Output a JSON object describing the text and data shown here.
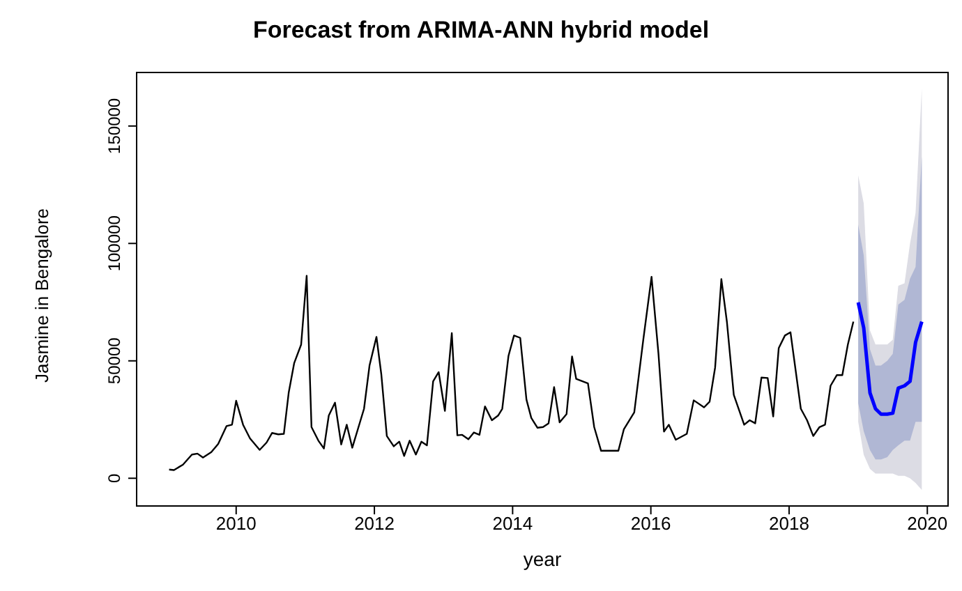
{
  "chart_data": {
    "type": "line",
    "title": "Forecast from ARIMA-ANN hybrid model",
    "xlabel": "year",
    "ylabel": "Jasmine in Bengalore",
    "xlim": [
      2008.56,
      2020.3
    ],
    "xticks": [
      2010,
      2012,
      2014,
      2016,
      2018,
      2020
    ],
    "ylim": [
      -11800,
      172800
    ],
    "yticks": [
      0,
      50000,
      100000,
      150000
    ],
    "marker": "none",
    "line_style": "solid",
    "series": [
      {
        "color": "#dcdce4",
        "x": [
          2019.0,
          2019.08,
          2019.17,
          2019.25,
          2019.33,
          2019.42,
          2019.5,
          2019.58,
          2019.67,
          2019.75,
          2019.83,
          2019.92
        ],
        "values": [
          null,
          null,
          null,
          null,
          null,
          null,
          null,
          null,
          null,
          null,
          null,
          null
        ],
        "lower": [
          24000,
          10000,
          4000,
          2000,
          2000,
          2000,
          2000,
          1000,
          1000,
          0,
          -2000,
          -5000
        ],
        "upper": [
          129000,
          117000,
          63000,
          57000,
          57000,
          57000,
          59000,
          82000,
          83000,
          100000,
          113000,
          166000
        ]
      },
      {
        "color": "#b0b7d4",
        "x": [
          2019.0,
          2019.08,
          2019.17,
          2019.25,
          2019.33,
          2019.42,
          2019.5,
          2019.58,
          2019.67,
          2019.75,
          2019.83,
          2019.92
        ],
        "values": [
          null,
          null,
          null,
          null,
          null,
          null,
          null,
          null,
          null,
          null,
          null,
          null
        ],
        "lower": [
          32000,
          20000,
          12000,
          8000,
          8000,
          9000,
          12000,
          14000,
          16000,
          16000,
          24000,
          24000
        ],
        "upper": [
          108000,
          95000,
          55000,
          48000,
          48000,
          50000,
          53000,
          74000,
          76000,
          85000,
          90000,
          137000
        ]
      },
      {
        "color": "#0000ff",
        "x": [
          2019.0,
          2019.08,
          2019.17,
          2019.25,
          2019.33,
          2019.42,
          2019.5,
          2019.58,
          2019.67,
          2019.75,
          2019.83,
          2019.92
        ],
        "values": [
          74900,
          64000,
          36400,
          29600,
          27300,
          27300,
          27700,
          38400,
          39400,
          41300,
          57900,
          66700
        ]
      },
      {
        "color": "#000000",
        "x": [
          2009.03,
          2009.1,
          2009.23,
          2009.36,
          2009.44,
          2009.52,
          2009.64,
          2009.74,
          2009.86,
          2009.94,
          2010.0,
          2010.1,
          2010.2,
          2010.34,
          2010.44,
          2010.52,
          2010.61,
          2010.69,
          2010.76,
          2010.84,
          2010.94,
          2011.02,
          2011.09,
          2011.19,
          2011.27,
          2011.34,
          2011.43,
          2011.52,
          2011.6,
          2011.68,
          2011.85,
          2011.93,
          2012.03,
          2012.1,
          2012.18,
          2012.28,
          2012.36,
          2012.43,
          2012.51,
          2012.6,
          2012.68,
          2012.76,
          2012.85,
          2012.93,
          2013.02,
          2013.12,
          2013.2,
          2013.27,
          2013.36,
          2013.44,
          2013.52,
          2013.6,
          2013.7,
          2013.79,
          2013.85,
          2013.94,
          2014.02,
          2014.11,
          2014.2,
          2014.27,
          2014.36,
          2014.44,
          2014.52,
          2014.6,
          2014.68,
          2014.78,
          2014.86,
          2014.92,
          2015.09,
          2015.18,
          2015.28,
          2015.53,
          2015.61,
          2015.76,
          2015.89,
          2016.01,
          2016.11,
          2016.19,
          2016.26,
          2016.36,
          2016.52,
          2016.62,
          2016.77,
          2016.85,
          2016.93,
          2017.02,
          2017.1,
          2017.2,
          2017.35,
          2017.43,
          2017.51,
          2017.6,
          2017.69,
          2017.77,
          2017.85,
          2017.94,
          2018.02,
          2018.17,
          2018.26,
          2018.35,
          2018.44,
          2018.52,
          2018.6,
          2018.69,
          2018.77,
          2018.85,
          2018.93
        ],
        "values": [
          3700,
          3500,
          5800,
          10100,
          10500,
          8800,
          11100,
          14600,
          22200,
          22800,
          33000,
          22800,
          17000,
          12100,
          15200,
          19300,
          18700,
          18900,
          36400,
          49100,
          56900,
          86200,
          21800,
          16000,
          12700,
          26700,
          32200,
          14400,
          22800,
          13000,
          29600,
          48100,
          60200,
          44300,
          18000,
          13600,
          15600,
          9500,
          16000,
          10100,
          15600,
          14000,
          41300,
          45200,
          28700,
          61800,
          18300,
          18500,
          16600,
          19500,
          18500,
          30600,
          24700,
          26700,
          29600,
          52100,
          60800,
          59800,
          33500,
          25700,
          21500,
          21800,
          23400,
          38800,
          23800,
          27300,
          51900,
          42300,
          40400,
          21800,
          11700,
          11700,
          20900,
          28100,
          58900,
          85800,
          53100,
          19900,
          22800,
          16400,
          18900,
          33200,
          30200,
          32600,
          47200,
          84800,
          66700,
          35500,
          22800,
          24700,
          23400,
          42900,
          42700,
          26300,
          55400,
          60800,
          62200,
          29600,
          24700,
          18000,
          21800,
          22800,
          39400,
          43900,
          43900,
          56900,
          66700
        ]
      }
    ]
  }
}
